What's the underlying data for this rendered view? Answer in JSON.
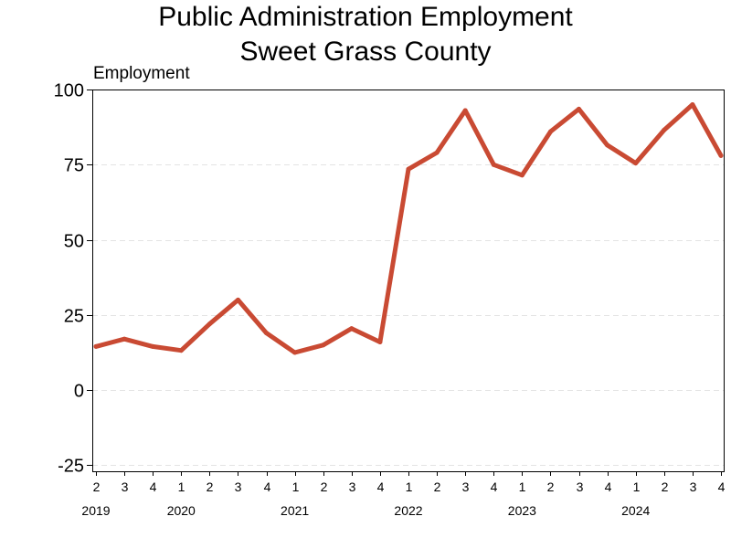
{
  "chart_data": {
    "type": "line",
    "title": [
      "Public Administration Employment",
      "Sweet Grass County"
    ],
    "ylabel": "Employment",
    "ylim": [
      -27,
      100
    ],
    "yticks": [
      -25,
      0,
      25,
      50,
      75,
      100
    ],
    "grid": "horizontal-dashed",
    "series": [
      {
        "name": "Employment",
        "color": "#c94a33",
        "quarters": [
          "2",
          "3",
          "4",
          "1",
          "2",
          "3",
          "4",
          "1",
          "2",
          "3",
          "4",
          "1",
          "2",
          "3",
          "4",
          "1",
          "2",
          "3",
          "4",
          "1",
          "2",
          "3",
          "4"
        ],
        "values": [
          14.5,
          17,
          14.5,
          13.2,
          22,
          30,
          19,
          12.5,
          15,
          20.5,
          16,
          73.5,
          79,
          93,
          75,
          71.5,
          86,
          93.5,
          81.5,
          75.5,
          86.5,
          95,
          78
        ]
      }
    ],
    "years": [
      {
        "label": "2019",
        "index": 0
      },
      {
        "label": "2020",
        "index": 3
      },
      {
        "label": "2021",
        "index": 7
      },
      {
        "label": "2022",
        "index": 11
      },
      {
        "label": "2023",
        "index": 15
      },
      {
        "label": "2024",
        "index": 19
      }
    ]
  }
}
